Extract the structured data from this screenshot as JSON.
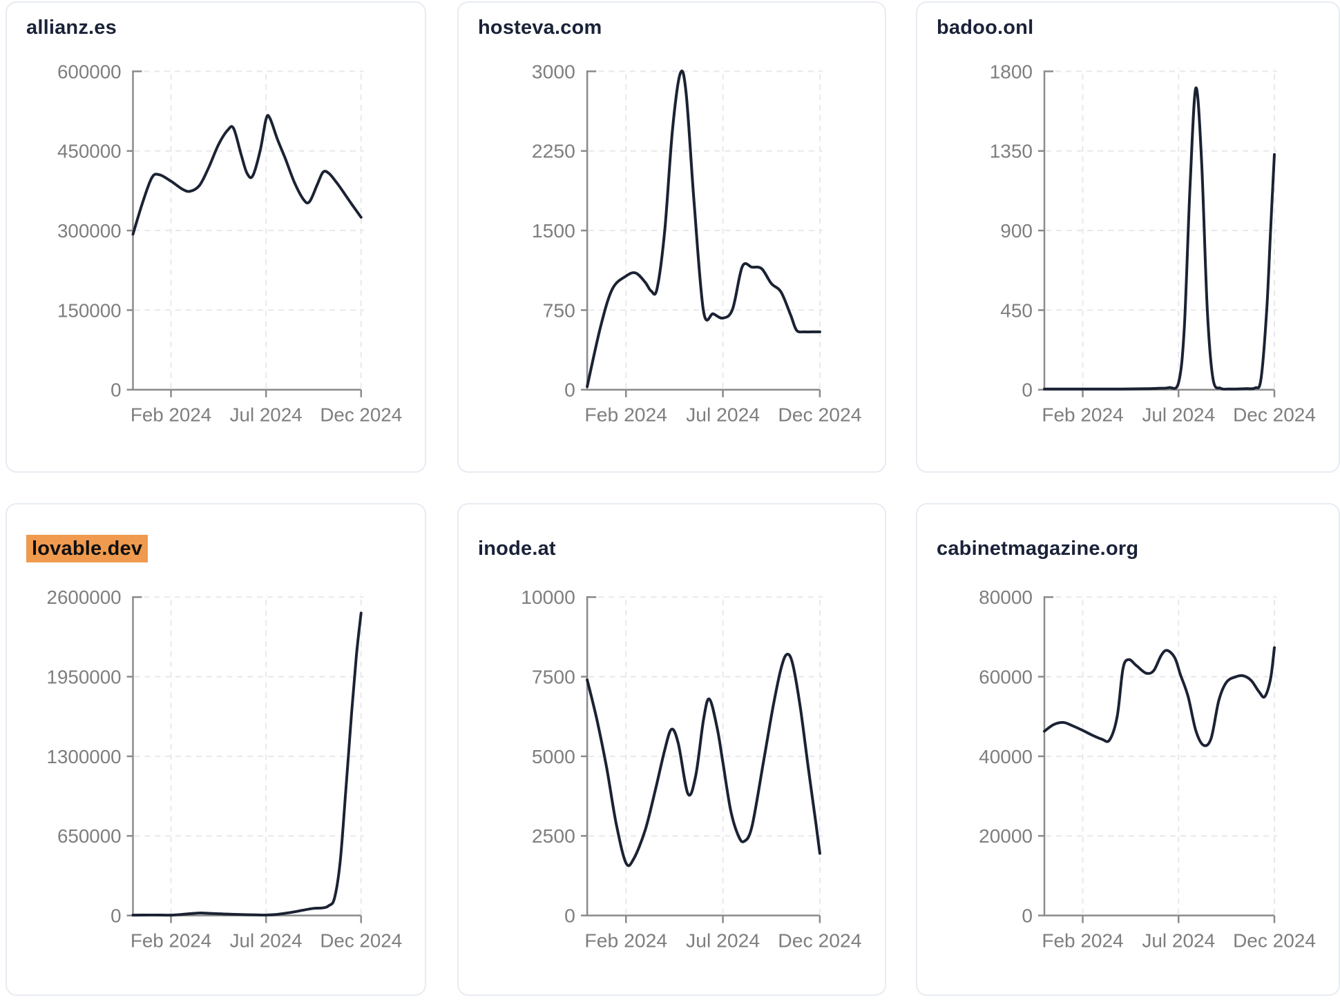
{
  "colors": {
    "line": "#1b2233",
    "title": "#1a2238",
    "axis": "#8a8a8a",
    "tick_label": "#7e7e7e",
    "gridline": "#e8e8ec",
    "highlight": "#ef9a4e",
    "card_border": "#e7ebf2",
    "background": "#ffffff"
  },
  "chart_data": [
    {
      "type": "line",
      "title": "allianz.es",
      "title_highlighted": false,
      "legend": "none",
      "grid": true,
      "x_range": [
        0,
        12
      ],
      "x_tick_labels": [
        "Feb 2024",
        "Jul 2024",
        "Dec 2024"
      ],
      "x_tick_positions": [
        2,
        7,
        12
      ],
      "ylim": [
        0,
        600000
      ],
      "y_ticks": [
        0,
        150000,
        300000,
        450000,
        600000
      ],
      "points": [
        [
          0,
          293000
        ],
        [
          0.5,
          352000
        ],
        [
          1,
          400000
        ],
        [
          1.4,
          405000
        ],
        [
          2,
          393000
        ],
        [
          2.6,
          378000
        ],
        [
          3,
          374000
        ],
        [
          3.5,
          385000
        ],
        [
          4,
          420000
        ],
        [
          4.5,
          462000
        ],
        [
          5,
          490000
        ],
        [
          5.3,
          492000
        ],
        [
          5.7,
          442000
        ],
        [
          6,
          408000
        ],
        [
          6.3,
          403000
        ],
        [
          6.7,
          452000
        ],
        [
          7,
          510000
        ],
        [
          7.2,
          512000
        ],
        [
          7.6,
          472000
        ],
        [
          8,
          437000
        ],
        [
          8.5,
          390000
        ],
        [
          9,
          357000
        ],
        [
          9.3,
          355000
        ],
        [
          9.7,
          387000
        ],
        [
          10,
          410000
        ],
        [
          10.3,
          408000
        ],
        [
          10.7,
          391000
        ],
        [
          11,
          376000
        ],
        [
          11.5,
          350000
        ],
        [
          12,
          325000
        ]
      ]
    },
    {
      "type": "line",
      "title": "hosteva.com",
      "title_highlighted": false,
      "legend": "none",
      "grid": true,
      "x_range": [
        0,
        12
      ],
      "x_tick_labels": [
        "Feb 2024",
        "Jul 2024",
        "Dec 2024"
      ],
      "x_tick_positions": [
        2,
        7,
        12
      ],
      "ylim": [
        0,
        3000
      ],
      "y_ticks": [
        0,
        750,
        1500,
        2250,
        3000
      ],
      "points": [
        [
          0,
          30
        ],
        [
          0.7,
          600
        ],
        [
          1.3,
          950
        ],
        [
          2,
          1070
        ],
        [
          2.5,
          1100
        ],
        [
          3,
          1010
        ],
        [
          3.3,
          930
        ],
        [
          3.6,
          950
        ],
        [
          4,
          1500
        ],
        [
          4.4,
          2450
        ],
        [
          4.8,
          2980
        ],
        [
          5.1,
          2800
        ],
        [
          5.5,
          1800
        ],
        [
          6,
          740
        ],
        [
          6.5,
          715
        ],
        [
          7,
          675
        ],
        [
          7.5,
          760
        ],
        [
          8,
          1160
        ],
        [
          8.5,
          1155
        ],
        [
          9,
          1140
        ],
        [
          9.5,
          1000
        ],
        [
          10,
          920
        ],
        [
          10.5,
          700
        ],
        [
          10.8,
          560
        ],
        [
          11.2,
          545
        ],
        [
          11.6,
          545
        ],
        [
          12,
          545
        ]
      ]
    },
    {
      "type": "line",
      "title": "badoo.onl",
      "title_highlighted": false,
      "legend": "none",
      "grid": true,
      "x_range": [
        0,
        12
      ],
      "x_tick_labels": [
        "Feb 2024",
        "Jul 2024",
        "Dec 2024"
      ],
      "x_tick_positions": [
        2,
        7,
        12
      ],
      "ylim": [
        0,
        1800
      ],
      "y_ticks": [
        0,
        450,
        900,
        1350,
        1800
      ],
      "points": [
        [
          0,
          4
        ],
        [
          1,
          4
        ],
        [
          2,
          4
        ],
        [
          3,
          4
        ],
        [
          4,
          4
        ],
        [
          5,
          5
        ],
        [
          5.5,
          6
        ],
        [
          6,
          8
        ],
        [
          6.5,
          12
        ],
        [
          7,
          40
        ],
        [
          7.3,
          350
        ],
        [
          7.6,
          1150
        ],
        [
          7.9,
          1705
        ],
        [
          8.2,
          1300
        ],
        [
          8.5,
          450
        ],
        [
          8.8,
          60
        ],
        [
          9.2,
          8
        ],
        [
          9.6,
          4
        ],
        [
          10,
          4
        ],
        [
          10.5,
          6
        ],
        [
          11,
          10
        ],
        [
          11.3,
          60
        ],
        [
          11.6,
          450
        ],
        [
          11.8,
          900
        ],
        [
          12,
          1330
        ]
      ]
    },
    {
      "type": "line",
      "title": "lovable.dev",
      "title_highlighted": true,
      "legend": "none",
      "grid": true,
      "x_range": [
        0,
        12
      ],
      "x_tick_labels": [
        "Feb 2024",
        "Jul 2024",
        "Dec 2024"
      ],
      "x_tick_positions": [
        2,
        7,
        12
      ],
      "ylim": [
        0,
        2600000
      ],
      "y_ticks": [
        0,
        650000,
        1300000,
        1950000,
        2600000
      ],
      "points": [
        [
          0,
          3000
        ],
        [
          0.5,
          3500
        ],
        [
          1,
          4000
        ],
        [
          1.5,
          3500
        ],
        [
          2,
          3000
        ],
        [
          2.5,
          8000
        ],
        [
          3,
          15000
        ],
        [
          3.5,
          20000
        ],
        [
          4,
          18000
        ],
        [
          4.5,
          14000
        ],
        [
          5,
          11000
        ],
        [
          5.5,
          9000
        ],
        [
          6,
          7000
        ],
        [
          6.5,
          5000
        ],
        [
          7,
          4000
        ],
        [
          7.5,
          8000
        ],
        [
          8,
          18000
        ],
        [
          8.5,
          30000
        ],
        [
          9,
          45000
        ],
        [
          9.5,
          58000
        ],
        [
          10,
          62000
        ],
        [
          10.3,
          80000
        ],
        [
          10.6,
          140000
        ],
        [
          10.9,
          440000
        ],
        [
          11.2,
          1030000
        ],
        [
          11.5,
          1650000
        ],
        [
          11.75,
          2120000
        ],
        [
          12,
          2470000
        ]
      ]
    },
    {
      "type": "line",
      "title": "inode.at",
      "title_highlighted": false,
      "legend": "none",
      "grid": true,
      "x_range": [
        0,
        12
      ],
      "x_tick_labels": [
        "Feb 2024",
        "Jul 2024",
        "Dec 2024"
      ],
      "x_tick_positions": [
        2,
        7,
        12
      ],
      "ylim": [
        0,
        10000
      ],
      "y_ticks": [
        0,
        2500,
        5000,
        7500,
        10000
      ],
      "points": [
        [
          0,
          7400
        ],
        [
          0.5,
          6150
        ],
        [
          1,
          4650
        ],
        [
          1.5,
          2870
        ],
        [
          2,
          1650
        ],
        [
          2.4,
          1780
        ],
        [
          3,
          2700
        ],
        [
          3.5,
          3900
        ],
        [
          4,
          5200
        ],
        [
          4.35,
          5850
        ],
        [
          4.7,
          5400
        ],
        [
          5.2,
          3820
        ],
        [
          5.6,
          4400
        ],
        [
          6,
          6150
        ],
        [
          6.3,
          6800
        ],
        [
          6.7,
          5900
        ],
        [
          7,
          4800
        ],
        [
          7.4,
          3300
        ],
        [
          7.8,
          2500
        ],
        [
          8.1,
          2330
        ],
        [
          8.5,
          2800
        ],
        [
          9.1,
          4850
        ],
        [
          9.6,
          6600
        ],
        [
          10,
          7760
        ],
        [
          10.3,
          8200
        ],
        [
          10.6,
          7900
        ],
        [
          11,
          6500
        ],
        [
          11.4,
          4650
        ],
        [
          11.8,
          2870
        ],
        [
          12,
          1950
        ]
      ]
    },
    {
      "type": "line",
      "title": "cabinetmagazine.org",
      "title_highlighted": false,
      "legend": "none",
      "grid": true,
      "x_range": [
        0,
        12
      ],
      "x_tick_labels": [
        "Feb 2024",
        "Jul 2024",
        "Dec 2024"
      ],
      "x_tick_positions": [
        2,
        7,
        12
      ],
      "ylim": [
        0,
        80000
      ],
      "y_ticks": [
        0,
        20000,
        40000,
        60000,
        80000
      ],
      "points": [
        [
          0,
          46300
        ],
        [
          0.5,
          48000
        ],
        [
          1,
          48500
        ],
        [
          1.5,
          47600
        ],
        [
          2,
          46500
        ],
        [
          2.5,
          45300
        ],
        [
          3,
          44300
        ],
        [
          3.4,
          44100
        ],
        [
          3.8,
          50000
        ],
        [
          4.1,
          62000
        ],
        [
          4.4,
          64300
        ],
        [
          4.8,
          62800
        ],
        [
          5.3,
          60900
        ],
        [
          5.7,
          61500
        ],
        [
          6.1,
          65400
        ],
        [
          6.4,
          66600
        ],
        [
          6.8,
          64800
        ],
        [
          7.1,
          60500
        ],
        [
          7.5,
          55000
        ],
        [
          7.9,
          46500
        ],
        [
          8.3,
          42800
        ],
        [
          8.7,
          44500
        ],
        [
          9.1,
          54000
        ],
        [
          9.5,
          58600
        ],
        [
          10,
          60000
        ],
        [
          10.4,
          60200
        ],
        [
          10.8,
          59000
        ],
        [
          11.2,
          56200
        ],
        [
          11.5,
          55000
        ],
        [
          11.8,
          59500
        ],
        [
          12,
          67300
        ]
      ]
    }
  ]
}
